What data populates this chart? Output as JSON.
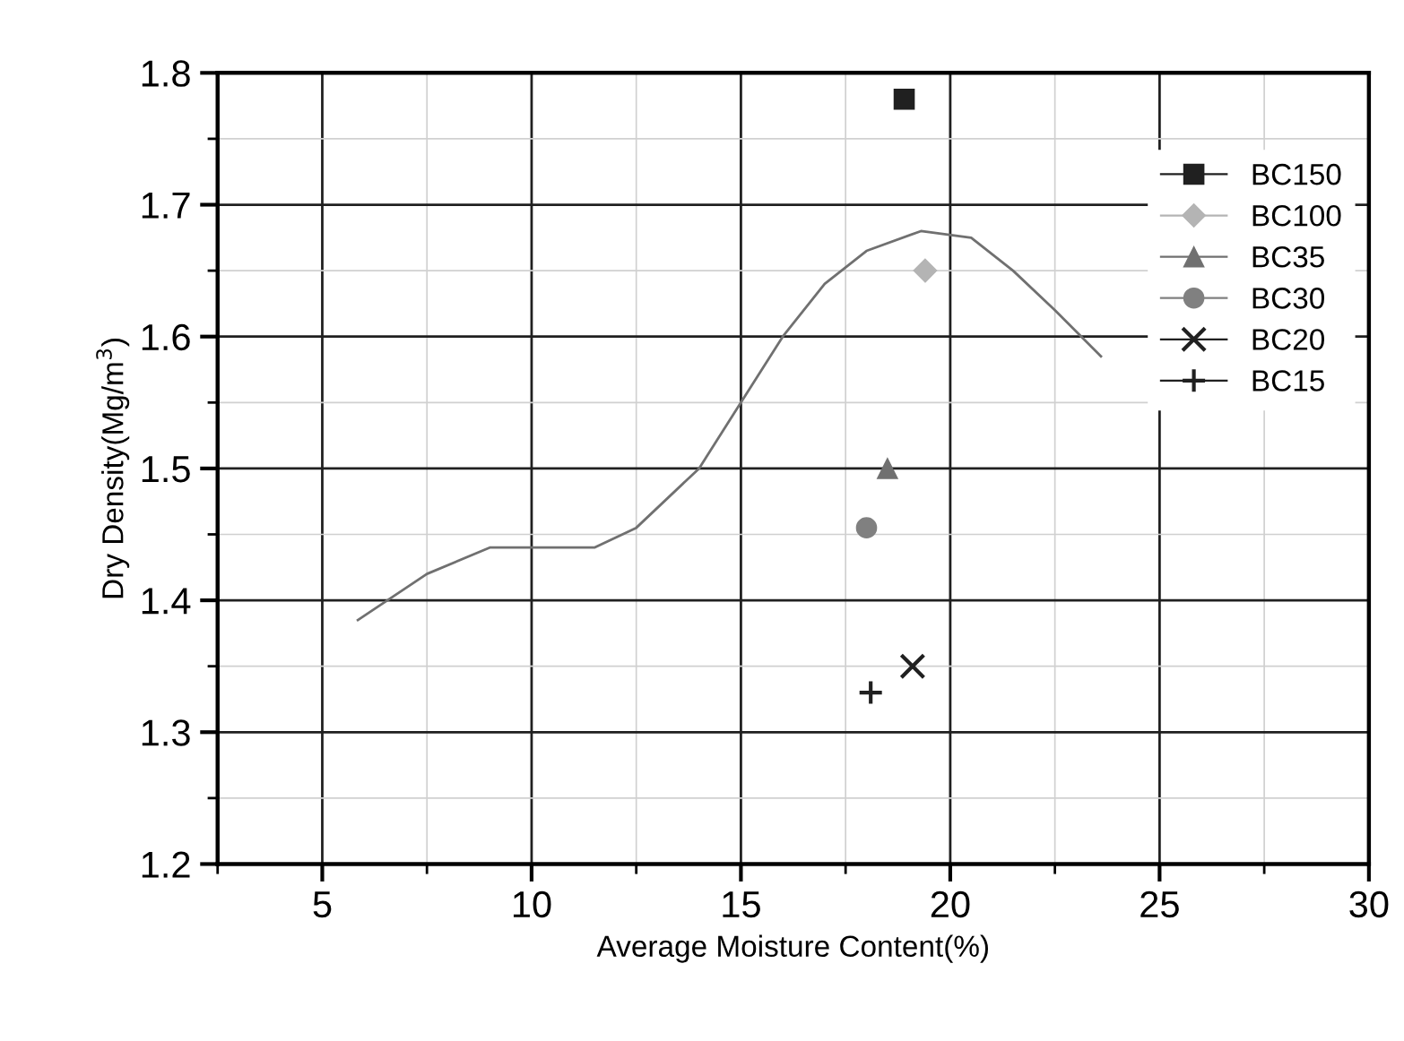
{
  "chart_data": {
    "type": "scatter",
    "xlabel": "Average Moisture Content(%)",
    "ylabel": "Dry Density(Mg/m$^{3}$)",
    "xlim": [
      2.5,
      30
    ],
    "xticks": [
      5,
      10,
      15,
      20,
      25,
      30
    ],
    "ylim": [
      1.2,
      1.8
    ],
    "yticks": [
      1.2,
      1.3,
      1.4,
      1.5,
      1.6,
      1.7,
      1.8
    ],
    "grid": true,
    "legend": "top right",
    "series": [
      {
        "type": "line",
        "color": "#707070",
        "marker": "none",
        "line_style": "solid",
        "x": [
          5.85,
          7.5,
          9,
          10,
          11.5,
          12.5,
          14,
          15,
          16,
          17,
          18,
          19.3,
          20.5,
          21.5,
          22.5,
          23.6
        ],
        "values": [
          1.385,
          1.42,
          1.44,
          1.44,
          1.44,
          1.455,
          1.5,
          1.55,
          1.6,
          1.64,
          1.665,
          1.68,
          1.675,
          1.65,
          1.62,
          1.585
        ]
      },
      {
        "name": "BC150",
        "color": "#202020",
        "marker": "square",
        "x": [
          18.9
        ],
        "values": [
          1.78
        ]
      },
      {
        "name": "BC100",
        "color": "#b4b4b4",
        "marker": "diamond",
        "x": [
          19.4
        ],
        "values": [
          1.65
        ]
      },
      {
        "name": "BC35",
        "color": "#707070",
        "marker": "triangle",
        "x": [
          18.5
        ],
        "values": [
          1.5
        ]
      },
      {
        "name": "BC30",
        "color": "#808080",
        "marker": "circle",
        "x": [
          18.0
        ],
        "values": [
          1.455
        ]
      },
      {
        "name": "BC20",
        "color": "#202020",
        "marker": "x",
        "x": [
          19.1
        ],
        "values": [
          1.35
        ]
      },
      {
        "name": "BC15",
        "color": "#202020",
        "marker": "cross",
        "x": [
          18.1
        ],
        "values": [
          1.33
        ]
      }
    ]
  }
}
